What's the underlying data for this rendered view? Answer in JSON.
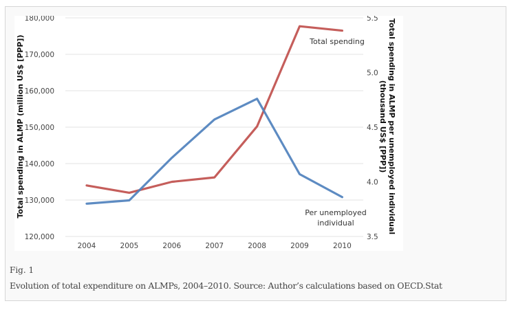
{
  "figure": {
    "label": "Fig. 1",
    "caption": "Evolution of total expenditure on ALMPs, 2004–2010. Source: Author’s calculations based on OECD.Stat"
  },
  "chart_data": {
    "type": "line",
    "title": "",
    "x": [
      "2004",
      "2005",
      "2006",
      "2007",
      "2008",
      "2009",
      "2010"
    ],
    "xlabel": "",
    "ylabel": "Total spending in ALMP (million  US$  [PPP])",
    "ylabel_right": [
      "Total spending in ALMP per unemployed individual",
      "(thousand  US$ [PPP])"
    ],
    "ylim": [
      120000,
      180000
    ],
    "ylim_right": [
      3.5,
      5.5
    ],
    "yticks": [
      "120,000",
      "130,000",
      "140,000",
      "150,000",
      "160,000",
      "170,000",
      "180,000"
    ],
    "yticks_right": [
      "3.5",
      "4.0",
      "4.5",
      "5.0",
      "5.5"
    ],
    "grid": true,
    "series": [
      {
        "name": "Total spending",
        "axis": "left",
        "color": "#c0504d",
        "values": [
          134000,
          132000,
          135000,
          136200,
          150200,
          177700,
          176500
        ]
      },
      {
        "name": "Per unemployed individual",
        "axis": "right",
        "color": "#4f81bd",
        "values": [
          3.8,
          3.83,
          4.22,
          4.57,
          4.76,
          4.07,
          3.86
        ]
      }
    ],
    "annotations": [
      {
        "text": "Total spending",
        "series": 0
      },
      {
        "text": "Per unemployed",
        "series": 1
      },
      {
        "text": "individual",
        "series": 1
      }
    ]
  }
}
